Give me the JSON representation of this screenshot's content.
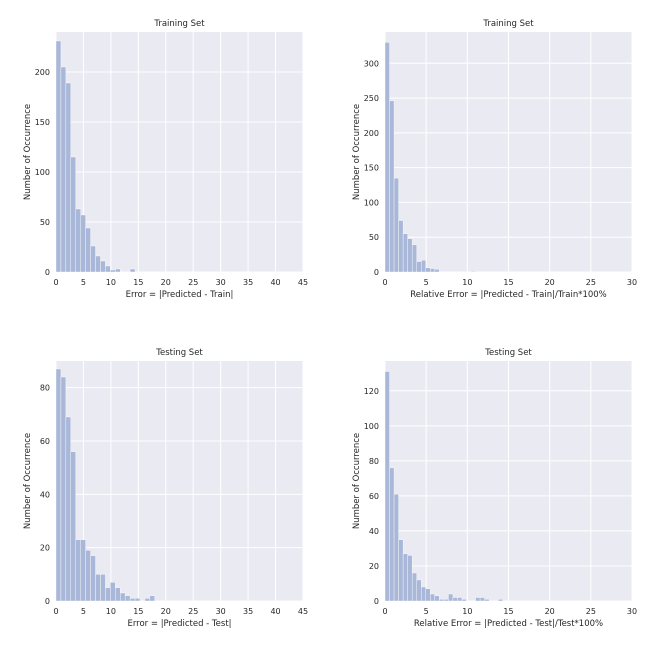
{
  "colors": {
    "bar": "#A9B7D8",
    "bar_edge": "#ffffff",
    "axes_bg": "#EAEAF2",
    "grid": "#ffffff"
  },
  "chart_data": [
    {
      "type": "bar",
      "title": "Training Set",
      "xlabel": "Error = |Predicted - Train|",
      "ylabel": "Number of Occurrence",
      "xlim": [
        0,
        45
      ],
      "ylim": [
        0,
        240
      ],
      "xticks": [
        0,
        5,
        10,
        15,
        20,
        25,
        30,
        35,
        40,
        45
      ],
      "yticks": [
        0,
        50,
        100,
        150,
        200
      ],
      "grid": true,
      "bin_width": 0.9,
      "bins_start": [
        0,
        0.9,
        1.8,
        2.7,
        3.6,
        4.5,
        5.4,
        6.3,
        7.2,
        8.1,
        9.0,
        9.9,
        10.8,
        11.7,
        12.6,
        13.5
      ],
      "values": [
        231,
        205,
        189,
        115,
        63,
        57,
        44,
        26,
        16,
        11,
        6,
        2,
        3,
        0,
        0,
        3
      ]
    },
    {
      "type": "bar",
      "title": "Training Set",
      "xlabel": "Relative Error = |Predicted - Train|/Train*100%",
      "ylabel": "Number of Occurrence",
      "xlim": [
        0,
        30
      ],
      "ylim": [
        0,
        345
      ],
      "xticks": [
        0,
        5,
        10,
        15,
        20,
        25,
        30
      ],
      "yticks": [
        0,
        50,
        100,
        150,
        200,
        250,
        300
      ],
      "grid": true,
      "bin_width": 0.55,
      "bins_start": [
        0,
        0.55,
        1.1,
        1.65,
        2.2,
        2.75,
        3.3,
        3.85,
        4.4,
        4.95,
        5.5,
        6.05,
        6.6,
        7.15,
        7.7,
        8.25,
        8.8,
        9.35,
        9.9,
        10.45
      ],
      "values": [
        330,
        246,
        135,
        74,
        55,
        48,
        39,
        15,
        17,
        6,
        5,
        4,
        0,
        0,
        0,
        0,
        0,
        0,
        0,
        1
      ]
    },
    {
      "type": "bar",
      "title": "Testing Set",
      "xlabel": "Error = |Predicted - Test|",
      "ylabel": "Number of Occurrence",
      "xlim": [
        0,
        45
      ],
      "ylim": [
        0,
        90
      ],
      "xticks": [
        0,
        5,
        10,
        15,
        20,
        25,
        30,
        35,
        40,
        45
      ],
      "yticks": [
        0,
        20,
        40,
        60,
        80
      ],
      "grid": true,
      "bin_width": 0.9,
      "bins_start": [
        0,
        0.9,
        1.8,
        2.7,
        3.6,
        4.5,
        5.4,
        6.3,
        7.2,
        8.1,
        9.0,
        9.9,
        10.8,
        11.7,
        12.6,
        13.5,
        14.4,
        15.3,
        16.2,
        17.1
      ],
      "values": [
        87,
        84,
        69,
        56,
        23,
        23,
        19,
        17,
        10,
        10,
        5,
        7,
        5,
        3,
        2,
        1,
        1,
        0,
        1,
        2
      ]
    },
    {
      "type": "bar",
      "title": "Testing Set",
      "xlabel": "Relative Error = |Predicted - Test|/Test*100%",
      "ylabel": "Number of Occurrence",
      "xlim": [
        0,
        30
      ],
      "ylim": [
        0,
        137
      ],
      "xticks": [
        0,
        5,
        10,
        15,
        20,
        25,
        30
      ],
      "yticks": [
        0,
        20,
        40,
        60,
        80,
        100,
        120
      ],
      "grid": true,
      "bin_width": 0.55,
      "bins_start": [
        0,
        0.55,
        1.1,
        1.65,
        2.2,
        2.75,
        3.3,
        3.85,
        4.4,
        4.95,
        5.5,
        6.05,
        6.6,
        7.15,
        7.7,
        8.25,
        8.8,
        9.35,
        9.9,
        10.45,
        11.0,
        11.55,
        12.1,
        12.65,
        13.2,
        13.75
      ],
      "values": [
        131,
        76,
        61,
        35,
        27,
        26,
        16,
        12,
        8,
        7,
        4,
        3,
        1,
        1,
        4,
        2,
        2,
        1,
        0,
        0,
        2,
        2,
        1,
        0,
        0,
        1
      ]
    }
  ]
}
